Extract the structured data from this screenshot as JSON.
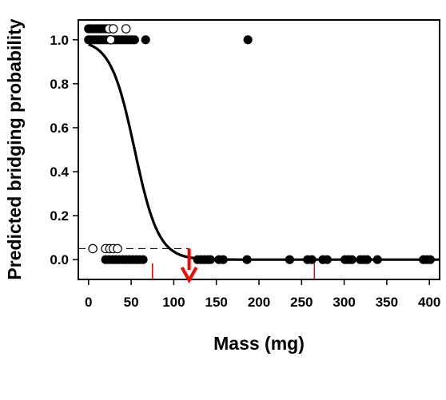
{
  "chart_data": {
    "type": "scatter",
    "title": "",
    "xlabel": "Mass (mg)",
    "ylabel": "Predicted bridging probability",
    "xlim": [
      -12,
      412
    ],
    "ylim": [
      -0.09,
      1.09
    ],
    "x_ticks": [
      "0",
      "50",
      "100",
      "150",
      "200",
      "250",
      "300",
      "350",
      "400"
    ],
    "x_tick_values": [
      0,
      50,
      100,
      150,
      200,
      250,
      300,
      350,
      400
    ],
    "y_ticks": [
      "0.0",
      "0.2",
      "0.4",
      "0.6",
      "0.8",
      "1.0"
    ],
    "y_tick_values": [
      0,
      0.2,
      0.4,
      0.6,
      0.8,
      1.0
    ],
    "grid": false,
    "legend": "none",
    "series": [
      {
        "marker": "filled-circle",
        "color": "#000000",
        "points": [
          [
            0,
            1.05
          ],
          [
            3,
            1.05
          ],
          [
            6,
            1.05
          ],
          [
            9,
            1.05
          ],
          [
            12,
            1.05
          ],
          [
            15,
            1.05
          ],
          [
            18,
            1.05
          ],
          [
            21,
            1.05
          ],
          [
            0,
            1.0
          ],
          [
            3,
            1.0
          ],
          [
            6,
            1.0
          ],
          [
            9,
            1.0
          ],
          [
            12,
            1.0
          ],
          [
            15,
            1.0
          ],
          [
            18,
            1.0
          ],
          [
            21,
            1.0
          ],
          [
            24,
            1.0
          ],
          [
            27,
            1.0
          ],
          [
            30,
            1.0
          ],
          [
            33,
            1.0
          ],
          [
            36,
            1.0
          ],
          [
            39,
            1.0
          ],
          [
            42,
            1.0
          ],
          [
            45,
            1.0
          ],
          [
            48,
            1.0
          ],
          [
            51,
            1.0
          ],
          [
            54,
            1.0
          ],
          [
            67,
            1.0
          ],
          [
            187,
            1.0
          ],
          [
            20,
            0.0
          ],
          [
            24,
            0.0
          ],
          [
            28,
            0.0
          ],
          [
            32,
            0.0
          ],
          [
            36,
            0.0
          ],
          [
            40,
            0.0
          ],
          [
            44,
            0.0
          ],
          [
            48,
            0.0
          ],
          [
            52,
            0.0
          ],
          [
            56,
            0.0
          ],
          [
            60,
            0.0
          ],
          [
            64,
            0.0
          ],
          [
            128,
            0.0
          ],
          [
            132,
            0.0
          ],
          [
            136,
            0.0
          ],
          [
            140,
            0.0
          ],
          [
            143,
            0.0
          ],
          [
            153,
            0.0
          ],
          [
            158,
            0.0
          ],
          [
            186,
            0.0
          ],
          [
            236,
            0.0
          ],
          [
            257,
            0.0
          ],
          [
            262,
            0.0
          ],
          [
            275,
            0.0
          ],
          [
            280,
            0.0
          ],
          [
            301,
            0.0
          ],
          [
            305,
            0.0
          ],
          [
            309,
            0.0
          ],
          [
            319,
            0.0
          ],
          [
            323,
            0.0
          ],
          [
            327,
            0.0
          ],
          [
            339,
            0.0
          ],
          [
            393,
            0.0
          ],
          [
            397,
            0.0
          ],
          [
            401,
            0.0
          ]
        ]
      },
      {
        "marker": "open-circle",
        "color": "#000000",
        "points": [
          [
            24,
            1.05
          ],
          [
            29,
            1.05
          ],
          [
            44,
            1.05
          ],
          [
            26,
            1.0
          ],
          [
            5,
            0.05
          ],
          [
            20,
            0.05
          ],
          [
            25,
            0.05
          ],
          [
            29,
            0.05
          ],
          [
            34,
            0.05
          ]
        ]
      }
    ],
    "curve": {
      "type": "logistic",
      "color": "#000000",
      "x_start": 0,
      "x_end": 412,
      "intercept": 3.85,
      "slope": -0.0712
    },
    "annotations": {
      "threshold_line": {
        "y": 0.05,
        "x_start": -12,
        "x_end": 118,
        "style": "dashed",
        "color": "#000000"
      },
      "arrow": {
        "x": 118,
        "y_from": 0.05,
        "y_to": -0.09,
        "color": "#ff0000"
      },
      "red_ticks": {
        "x": [
          75,
          265
        ],
        "color": "#ff0000"
      }
    }
  }
}
